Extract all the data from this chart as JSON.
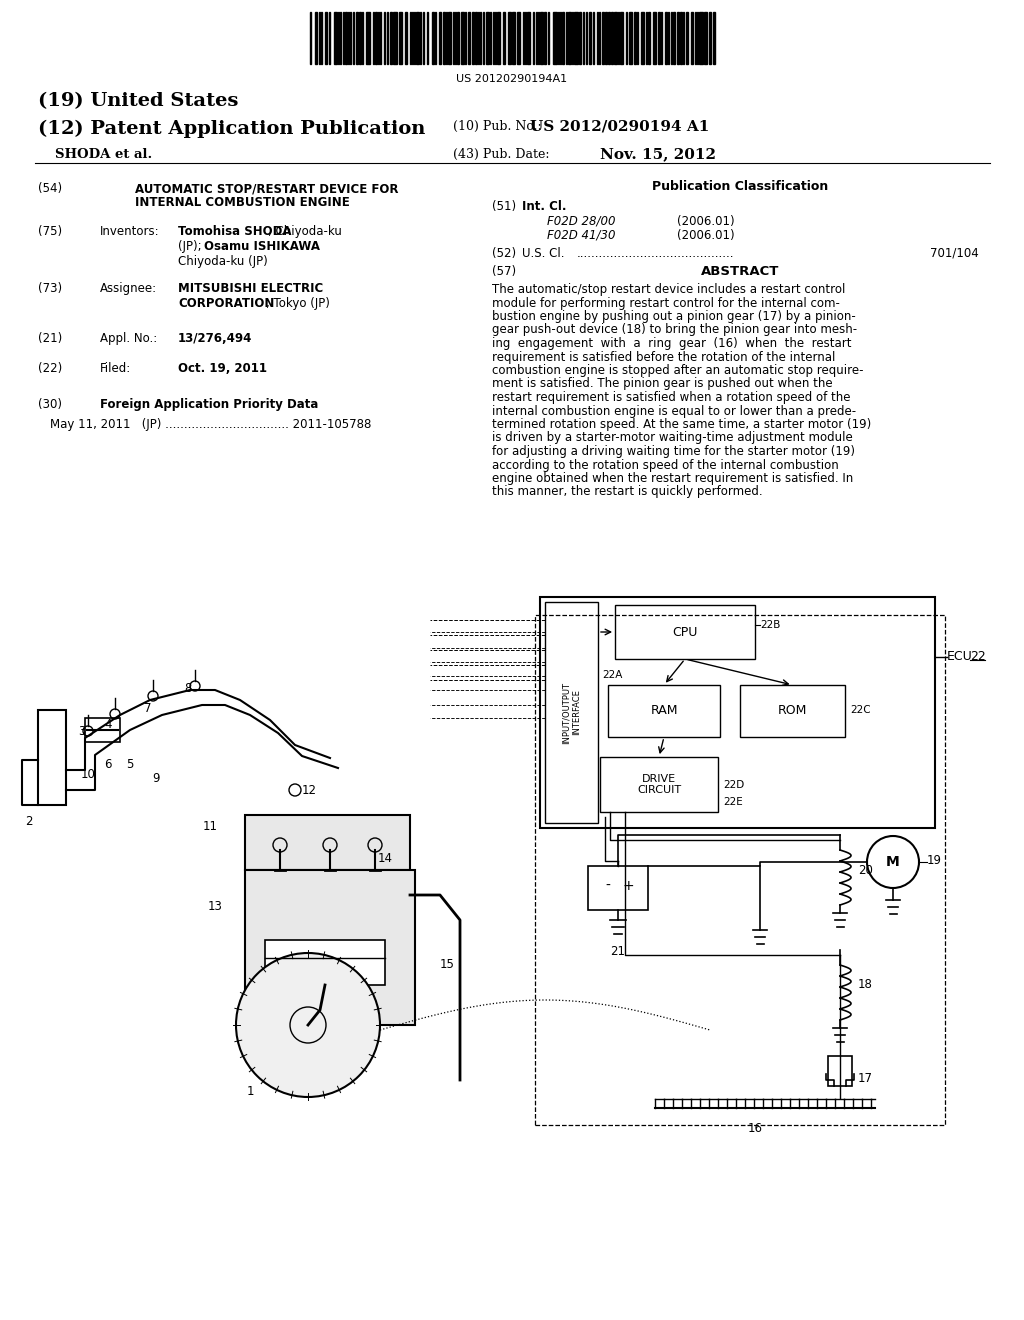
{
  "bg_color": "#ffffff",
  "barcode_number": "US 20120290194A1",
  "h19": "(19) United States",
  "h12": "(12) Patent Application Publication",
  "h10_label": "(10) Pub. No.:",
  "h10_val": "US 2012/0290194 A1",
  "h_assignee": "SHODA et al.",
  "h43_label": "(43) Pub. Date:",
  "h43_val": "Nov. 15, 2012",
  "s54_label": "(54)",
  "s54_v1": "AUTOMATIC STOP/RESTART DEVICE FOR",
  "s54_v2": "INTERNAL COMBUSTION ENGINE",
  "s75_label": "(75)",
  "s75_key": "Inventors:",
  "s75_b1": "Tomohisa SHODA",
  "s75_p1": ", Chiyoda-ku",
  "s75_p2": "(JP); ",
  "s75_b2": "Osamu ISHIKAWA",
  "s75_p3": "Chiyoda-ku (JP)",
  "s73_label": "(73)",
  "s73_key": "Assignee:",
  "s73_b1": "MITSUBISHI ELECTRIC",
  "s73_b2": "CORPORATION",
  "s73_p1": ", Tokyo (JP)",
  "s21_label": "(21)",
  "s21_key": "Appl. No.:",
  "s21_val": "13/276,494",
  "s22_label": "(22)",
  "s22_key": "Filed:",
  "s22_val": "Oct. 19, 2011",
  "s30_label": "(30)",
  "s30_key": "Foreign Application Priority Data",
  "s30_val": "May 11, 2011   (JP) ................................. 2011-105788",
  "rc_pub_class": "Publication Classification",
  "s51_label": "(51)",
  "s51_key": "Int. Cl.",
  "s51_v1": "F02D 28/00",
  "s51_d1": "(2006.01)",
  "s51_v2": "F02D 41/30",
  "s51_d2": "(2006.01)",
  "s52_label": "(52)",
  "s52_key": "U.S. Cl.",
  "s52_dots": "..........................................",
  "s52_val": "701/104",
  "s57_label": "(57)",
  "s57_key": "ABSTRACT",
  "abstract_lines": [
    "The automatic/stop restart device includes a restart control",
    "module for performing restart control for the internal com-",
    "bustion engine by pushing out a pinion gear (17) by a pinion-",
    "gear push-out device (18) to bring the pinion gear into mesh-",
    "ing  engagement  with  a  ring  gear  (16)  when  the  restart",
    "requirement is satisfied before the rotation of the internal",
    "combustion engine is stopped after an automatic stop require-",
    "ment is satisfied. The pinion gear is pushed out when the",
    "restart requirement is satisfied when a rotation speed of the",
    "internal combustion engine is equal to or lower than a prede-",
    "termined rotation speed. At the same time, a starter motor (19)",
    "is driven by a starter-motor waiting-time adjustment module",
    "for adjusting a driving waiting time for the starter motor (19)",
    "according to the rotation speed of the internal combustion",
    "engine obtained when the restart requirement is satisfied. In",
    "this manner, the restart is quickly performed."
  ]
}
